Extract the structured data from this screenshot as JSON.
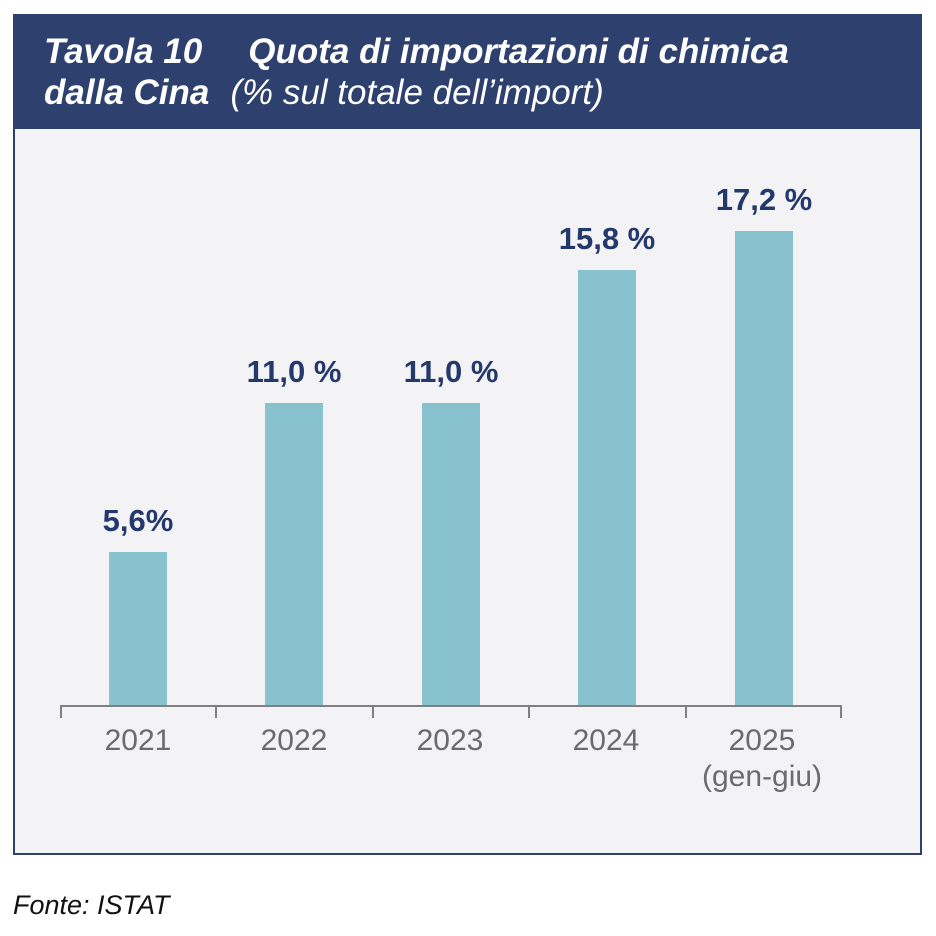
{
  "header": {
    "label": "Tavola 10",
    "title_line1": "Quota di importazioni di chimica",
    "title_line2_bold": "dalla Cina",
    "subtitle": "(% sul totale dell’import)"
  },
  "footer": {
    "source": "Fonte: ISTAT"
  },
  "colors": {
    "header_bg": "#2d406e",
    "panel_bg": "#f3f3f5",
    "panel_border": "#2d406e",
    "bar": "#88c2cf",
    "value_label": "#24396b",
    "axis": "#808080",
    "tick_label": "#6b6b6b"
  },
  "chart_data": {
    "type": "bar",
    "title": "Tavola 10  Quota di importazioni di chimica dalla Cina",
    "subtitle": "(% sul totale dell’import)",
    "categories": [
      "2021",
      "2022",
      "2023",
      "2024",
      "2025"
    ],
    "category_sublabels": [
      "",
      "",
      "",
      "",
      "(gen-giu)"
    ],
    "values": [
      5.6,
      11.0,
      11.0,
      15.8,
      17.2
    ],
    "value_labels": [
      "5,6%",
      "11,0 %",
      "11,0 %",
      "15,8 %",
      "17,2 %"
    ],
    "xlabel": "",
    "ylabel": "",
    "ylim": [
      0,
      20.9
    ],
    "grid": false,
    "legend": "none",
    "source": "Fonte: ISTAT"
  }
}
